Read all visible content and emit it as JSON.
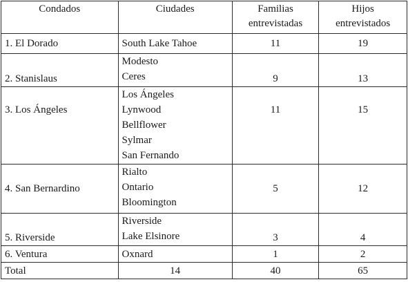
{
  "headers": {
    "condados": "Condados",
    "ciudades": "Ciudades",
    "familias_line1": "Familias",
    "familias_line2": "entrevistadas",
    "hijos_line1": "Hijos",
    "hijos_line2": "entrevistados"
  },
  "rows": [
    {
      "condado": "1. El Dorado",
      "ciudades": [
        "South Lake Tahoe"
      ],
      "familias": "11",
      "hijos": "19"
    },
    {
      "condado": "2. Stanislaus",
      "ciudades": [
        "Modesto",
        "Ceres"
      ],
      "familias": "9",
      "hijos": "13"
    },
    {
      "condado": "3. Los Ángeles",
      "ciudades": [
        "Los Ángeles",
        "Lynwood",
        "Bellflower",
        "Sylmar",
        "San Fernando"
      ],
      "familias": "11",
      "hijos": "15"
    },
    {
      "condado": "4. San Bernardino",
      "ciudades": [
        "Rialto",
        "Ontario",
        "Bloomington"
      ],
      "familias": "5",
      "hijos": "12"
    },
    {
      "condado": "5. Riverside",
      "ciudades": [
        "Riverside",
        "Lake Elsinore"
      ],
      "familias": "3",
      "hijos": "4"
    },
    {
      "condado": "6. Ventura",
      "ciudades": [
        "Oxnard"
      ],
      "familias": "1",
      "hijos": "2"
    }
  ],
  "total": {
    "label": "Total",
    "ciudades": "14",
    "familias": "40",
    "hijos": "65"
  }
}
